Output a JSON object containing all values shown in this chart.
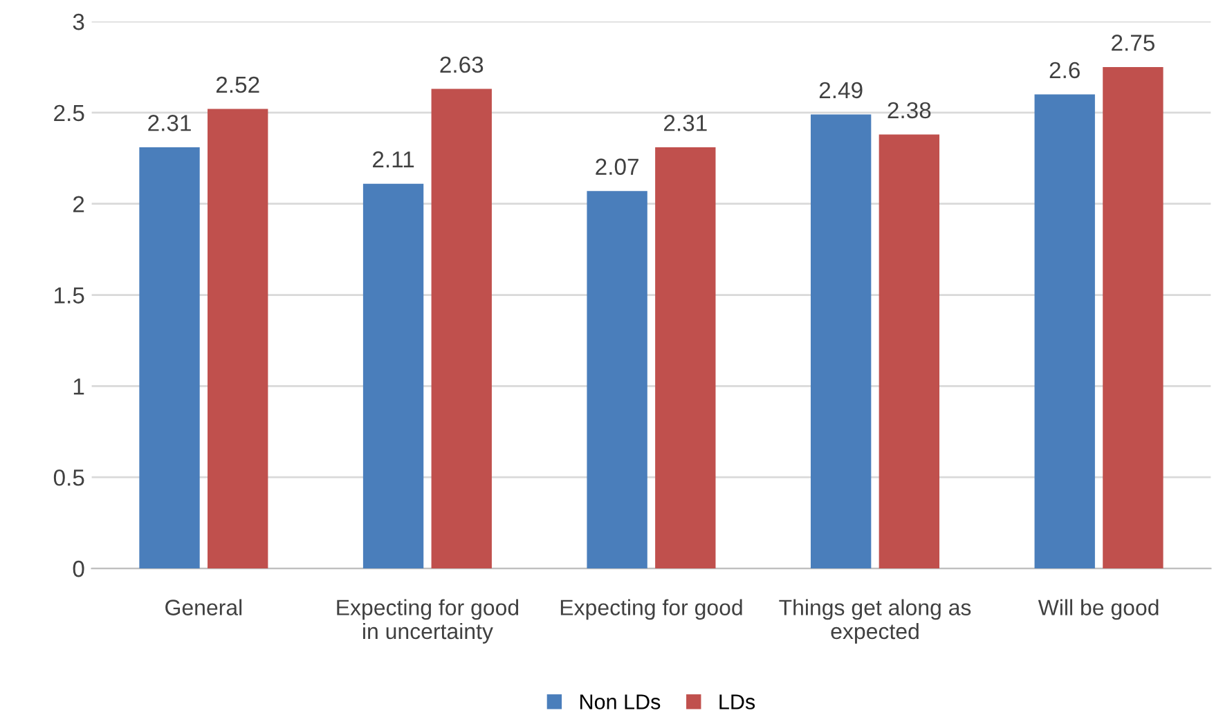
{
  "chart_data": {
    "type": "bar",
    "categories": [
      "General",
      "Expecting for good\nin uncertainty",
      "Expecting for good",
      "Things get along as\nexpected",
      "Will be good"
    ],
    "series": [
      {
        "name": "Non LDs",
        "color": "#4a7ebb",
        "values": [
          2.31,
          2.11,
          2.07,
          2.49,
          2.6
        ]
      },
      {
        "name": "LDs",
        "color": "#c0504d",
        "values": [
          2.52,
          2.63,
          2.31,
          2.38,
          2.75
        ]
      }
    ],
    "ylim": [
      0,
      3
    ],
    "yticks": [
      0,
      0.5,
      1,
      1.5,
      2,
      2.5,
      3
    ],
    "grid": "y",
    "legend": "bottom",
    "data_labels": true
  }
}
